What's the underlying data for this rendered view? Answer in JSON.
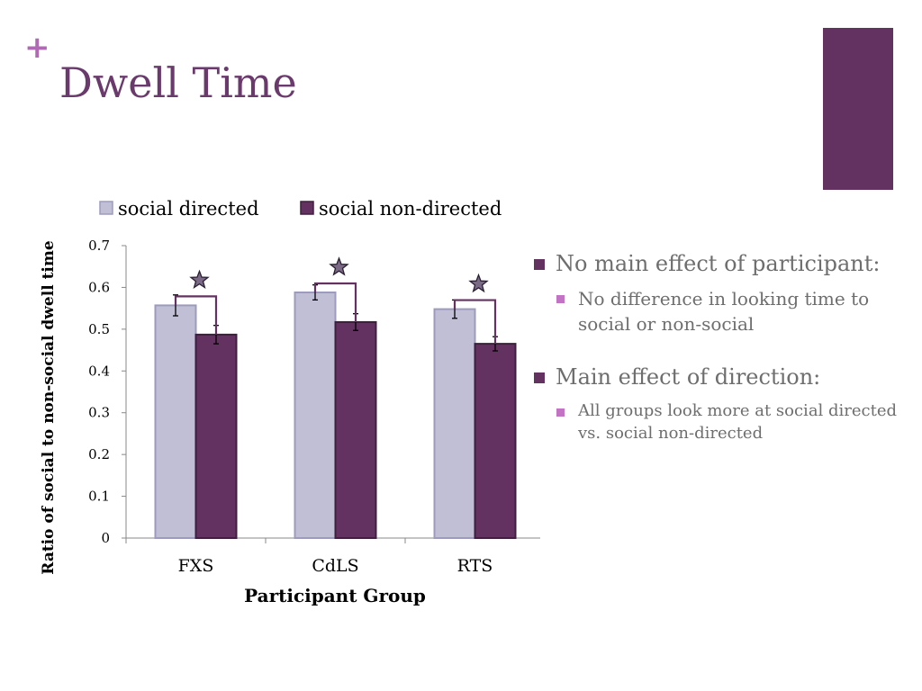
{
  "slide": {
    "plus": "+",
    "title": "Dwell Time"
  },
  "colors": {
    "title": "#6b3a6c",
    "accent_block": "#633261",
    "series_directed": "#c0bfd6",
    "series_directed_border": "#9d9bbd",
    "series_nondirected": "#633261",
    "bullet_l1": "#633261",
    "bullet_l2": "#c373c4"
  },
  "bullets": [
    {
      "text": "No main effect of participant:",
      "sub": "No difference in looking time to social or non-social"
    },
    {
      "text": "Main effect of direction:",
      "sub": "All groups look more at social directed vs. social non-directed"
    }
  ],
  "chart_data": {
    "type": "bar",
    "categories": [
      "FXS",
      "CdLS",
      "RTS"
    ],
    "series": [
      {
        "name": "social directed",
        "values": [
          0.557,
          0.588,
          0.548
        ],
        "errors": [
          0.025,
          0.018,
          0.022
        ]
      },
      {
        "name": "social non-directed",
        "values": [
          0.487,
          0.517,
          0.465
        ],
        "errors": [
          0.022,
          0.02,
          0.017
        ]
      }
    ],
    "xlabel": "Participant Group",
    "ylabel": "Ratio of social to non-social dwell time",
    "ylim": [
      0,
      0.7
    ],
    "yticks": [
      "0",
      "0.1",
      "0.2",
      "0.3",
      "0.4",
      "0.5",
      "0.6",
      "0.7"
    ],
    "significance_markers": [
      "FXS",
      "CdLS",
      "RTS"
    ],
    "legend_position": "top",
    "grid": false
  }
}
